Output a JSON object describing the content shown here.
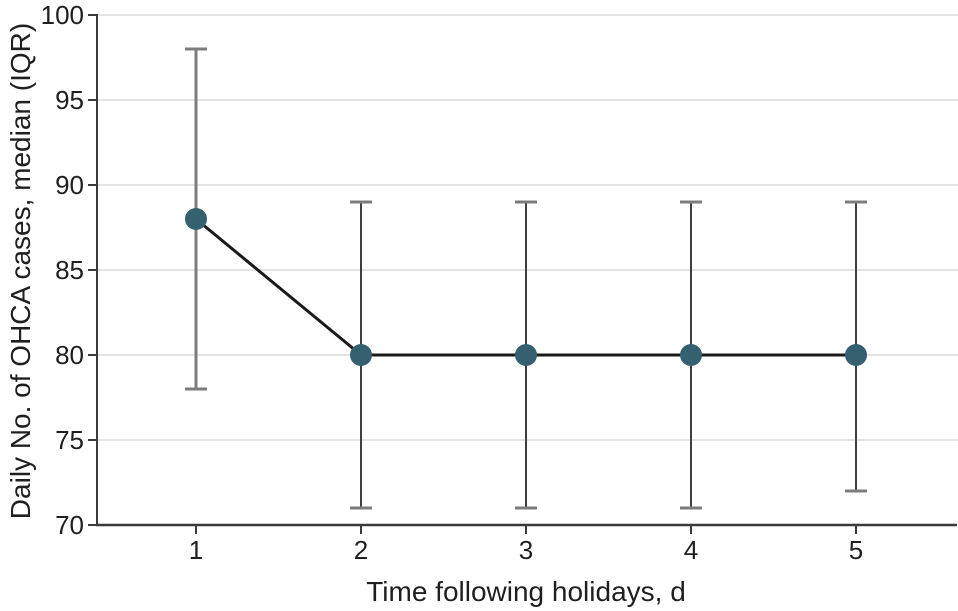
{
  "figure": {
    "xlabel": "Time following holidays, d",
    "ylabel": "Daily No. of OHCA cases, median (IQR)"
  },
  "chart_data": {
    "type": "line",
    "x": [
      1,
      2,
      3,
      4,
      5
    ],
    "series": [
      {
        "name": "Daily No. of OHCA cases, median",
        "values": [
          88,
          80,
          80,
          80,
          80
        ],
        "iqr_low": [
          78,
          71,
          71,
          71,
          72
        ],
        "iqr_high": [
          98,
          89,
          89,
          89,
          89
        ]
      }
    ],
    "title": "",
    "xlabel": "Time following holidays, d",
    "ylabel": "Daily No. of OHCA cases, median (IQR)",
    "xticks": [
      1,
      2,
      3,
      4,
      5
    ],
    "yticks": [
      70,
      75,
      80,
      85,
      90,
      95,
      100
    ],
    "ylim": [
      70,
      100
    ],
    "grid": "horizontal",
    "legend": "none",
    "colors": {
      "marker": "#34606f",
      "data_line": "#1a1a1a",
      "error_line": "#3f3f3f",
      "error_line_first": "#7c7c7c",
      "error_cap": "#7c7c7c",
      "gridline": "#e4e4e4",
      "axis": "#3a3a3a",
      "text": "#1f1f1f",
      "background": "#ffffff"
    }
  }
}
